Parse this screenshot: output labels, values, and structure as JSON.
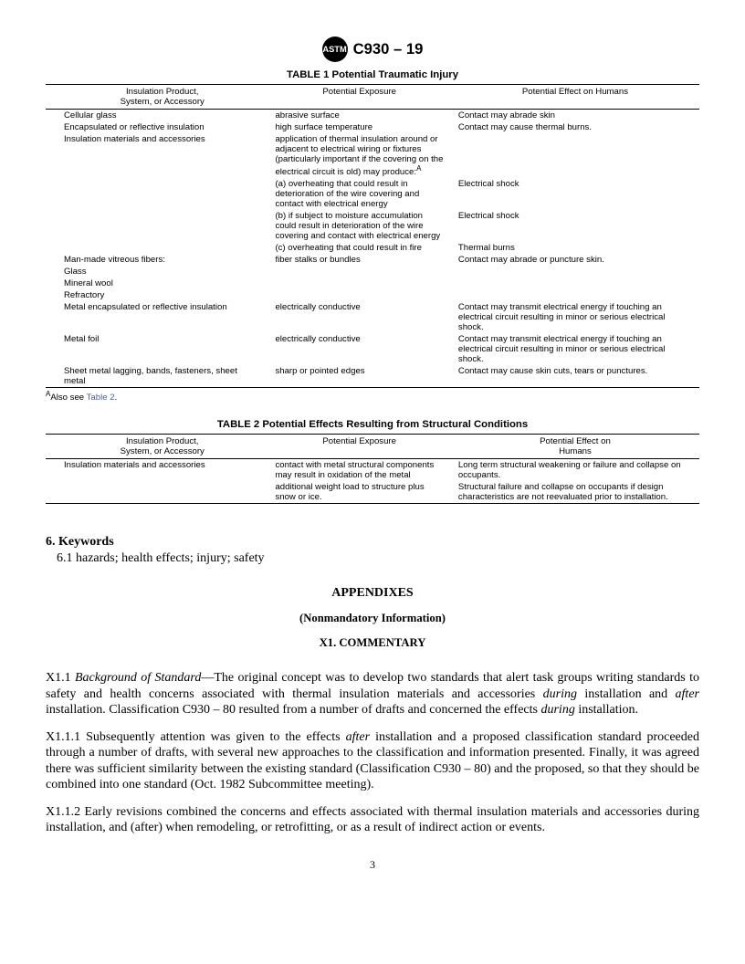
{
  "header": {
    "logo_text": "ASTM",
    "designation": "C930 – 19"
  },
  "table1": {
    "title": "TABLE 1 Potential Traumatic Injury",
    "headers": {
      "col1_line1": "Insulation Product,",
      "col1_line2": "System, or Accessory",
      "col2": "Potential Exposure",
      "col3": "Potential Effect on Humans"
    },
    "rows": [
      {
        "c1": "Cellular glass",
        "c2": "abrasive surface",
        "c3": "Contact may abrade skin"
      },
      {
        "c1": "Encapsulated or reflective insulation",
        "c2": "high surface temperature",
        "c3": "Contact may cause thermal burns."
      },
      {
        "c1": "Insulation materials and accessories",
        "c2": "application of thermal insulation around or adjacent to electrical wiring or fixtures (particularly important if the covering on the electrical circuit is old) may produce:",
        "c2_sup": "A",
        "c3": ""
      },
      {
        "c1": "",
        "c2": "(a) overheating that could result in deterioration of the wire covering and contact with electrical energy",
        "c3": "Electrical shock"
      },
      {
        "c1": "",
        "c2": "(b) if subject to moisture accumulation could result in deterioration of the wire covering and contact with electrical energy",
        "c3": "Electrical shock"
      },
      {
        "c1": "",
        "c2": "(c) overheating that could result in fire",
        "c3": "Thermal burns"
      },
      {
        "c1": "Man-made vitreous fibers:",
        "c2": "fiber stalks or bundles",
        "c3": "Contact may abrade or puncture skin."
      },
      {
        "c1": "Glass",
        "c2": "",
        "c3": ""
      },
      {
        "c1": "Mineral wool",
        "c2": "",
        "c3": ""
      },
      {
        "c1": "Refractory",
        "c2": "",
        "c3": ""
      },
      {
        "c1": "Metal encapsulated or reflective insulation",
        "c2": "electrically conductive",
        "c3": "Contact may transmit electrical energy if touching an electrical circuit resulting in minor or serious electrical shock."
      },
      {
        "c1": "Metal foil",
        "c2": "electrically conductive",
        "c3": "Contact may transmit electrical energy if touching an electrical circuit resulting in minor or serious electrical shock."
      },
      {
        "c1": "Sheet metal lagging, bands, fasteners, sheet metal",
        "c2": "sharp or pointed edges",
        "c3": "Contact may cause skin cuts, tears or punctures."
      }
    ],
    "footnote_marker": "A",
    "footnote_text": "Also see ",
    "footnote_link": "Table 2",
    "footnote_end": "."
  },
  "table2": {
    "title": "TABLE 2 Potential Effects Resulting from Structural Conditions",
    "headers": {
      "col1_line1": "Insulation Product,",
      "col1_line2": "System, or Accessory",
      "col2": "Potential Exposure",
      "col3_line1": "Potential Effect on",
      "col3_line2": "Humans"
    },
    "rows": [
      {
        "c1": "Insulation materials and accessories",
        "c2": "contact with metal structural components may result in oxidation of the metal",
        "c3": "Long term structural weakening or failure and collapse on occupants."
      },
      {
        "c1": "",
        "c2": "additional weight load to structure plus snow or ice.",
        "c3": "Structural failure and collapse on occupants if design characteristics are not reevaluated prior to installation."
      }
    ]
  },
  "keywords": {
    "heading": "6.  Keywords",
    "body": "6.1 hazards; health effects; injury; safety"
  },
  "appendix": {
    "heading": "APPENDIXES",
    "sub": "(Nonmandatory Information)",
    "x1": "X1.  COMMENTARY",
    "p1_num": "X1.1 ",
    "p1_label": "Background of Standard",
    "p1_text": "—The original concept was to develop two standards that alert task groups writing standards to safety and health concerns associated with thermal insulation materials and accessories ",
    "p1_during": "during",
    "p1_text2": " installation and ",
    "p1_after": "after",
    "p1_text3": " installation. Classification C930 – 80 resulted from a number of drafts and concerned the effects ",
    "p1_during2": "during",
    "p1_text4": " installation.",
    "p2_num": "X1.1.1  Subsequently attention was given to the effects ",
    "p2_after": "after",
    "p2_text": " installation and a proposed classification standard proceeded through a number of drafts, with several new approaches to the classification and information presented. Finally, it was agreed there was sufficient similarity between the existing standard (Classification C930 – 80) and the proposed, so that they should be combined into one standard (Oct. 1982 Subcommittee meeting).",
    "p3": "X1.1.2  Early revisions combined the concerns and effects associated with thermal insulation materials and accessories during installation, and (after) when remodeling, or retrofitting, or as a result of indirect action or events."
  },
  "page_number": "3"
}
